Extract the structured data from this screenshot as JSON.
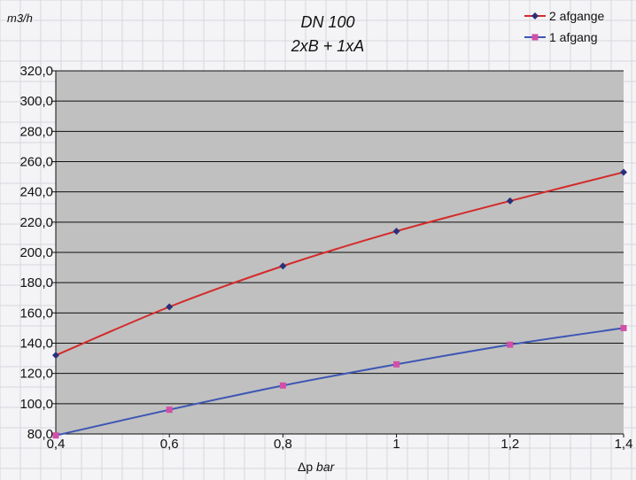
{
  "chart_data": {
    "type": "line",
    "title": "DN 100",
    "subtitle": "2xB + 1xA",
    "ylabel": "m3/h",
    "xlabel_symbol": "Δp",
    "xlabel_unit": "bar",
    "x": [
      0.4,
      0.6,
      0.8,
      1.0,
      1.2,
      1.4
    ],
    "x_tick_labels": [
      "0,4",
      "0,6",
      "0,8",
      "1",
      "1,2",
      "1,4"
    ],
    "xlim": [
      0.4,
      1.4
    ],
    "ylim": [
      80,
      320
    ],
    "y_tick_labels": [
      "80,0",
      "100,0",
      "120,0",
      "140,0",
      "160,0",
      "180,0",
      "200,0",
      "220,0",
      "240,0",
      "260,0",
      "280,0",
      "300,0",
      "320,0"
    ],
    "grid": true,
    "legend_position": "top-right",
    "series": [
      {
        "name": "2 afgange",
        "values": [
          132,
          164,
          191,
          214,
          234,
          253
        ],
        "color": "#d42a2a",
        "marker": "diamond",
        "marker_color": "#2a2f7a"
      },
      {
        "name": "1 afgang",
        "values": [
          79,
          96,
          112,
          126,
          139,
          150
        ],
        "color": "#3d56b4",
        "marker": "square",
        "marker_color": "#d24fa8"
      }
    ],
    "colors": {
      "plot_background": "#c0c0c0",
      "page_background": "#f4f4f6"
    }
  }
}
